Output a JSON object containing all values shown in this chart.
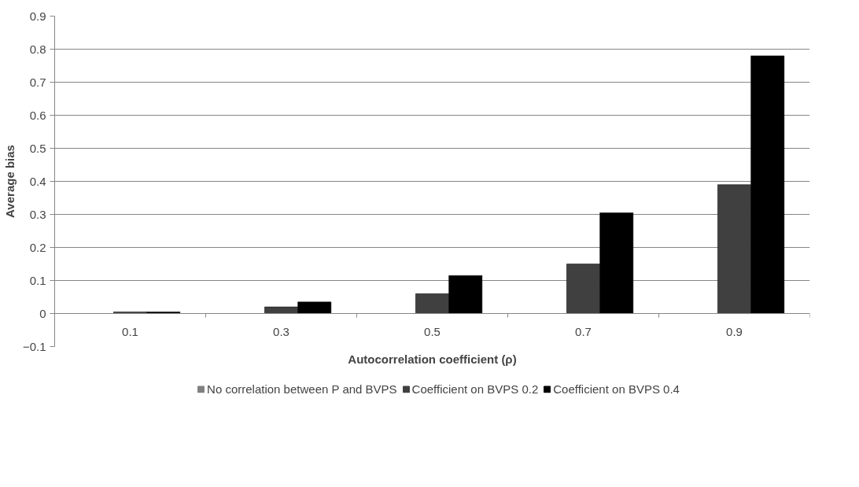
{
  "chart_data": {
    "type": "bar",
    "xlabel": "Autocorrelation coefficient (ρ)",
    "ylabel": "Average bias",
    "categories": [
      "0.1",
      "0.3",
      "0.5",
      "0.7",
      "0.9"
    ],
    "series": [
      {
        "name": "No correlation between P and BVPS",
        "color": "#808080",
        "values": [
          0,
          0,
          0,
          0,
          0
        ]
      },
      {
        "name": "Coefficient on BVPS 0.2",
        "color": "#404040",
        "values": [
          0.005,
          0.02,
          0.06,
          0.15,
          0.39
        ]
      },
      {
        "name": "Coefficient on BVPS 0.4",
        "color": "#000000",
        "values": [
          0.005,
          0.035,
          0.115,
          0.305,
          0.78
        ]
      }
    ],
    "ylim": [
      -0.1,
      0.9
    ],
    "yticks": [
      -0.1,
      0,
      0.1,
      0.2,
      0.3,
      0.4,
      0.5,
      0.6,
      0.7,
      0.8,
      0.9
    ],
    "grid": "y",
    "legend": "bottom"
  }
}
